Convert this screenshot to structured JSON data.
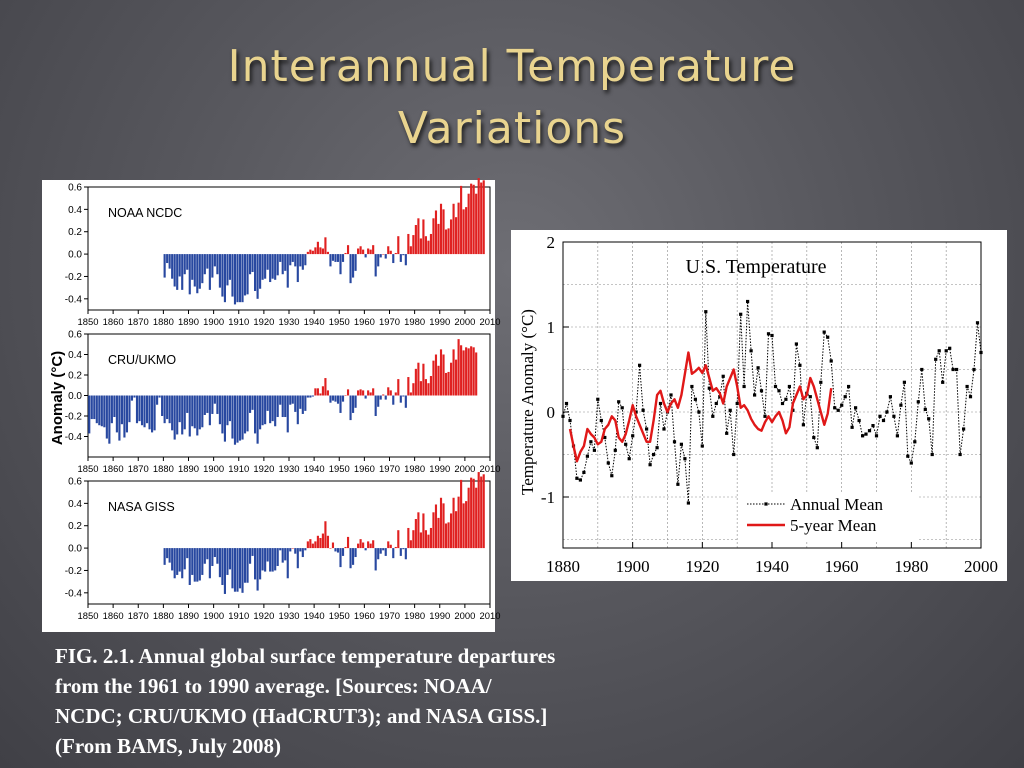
{
  "slide": {
    "title_line1": "Interannual Temperature",
    "title_line2": "Variations",
    "caption_lines": [
      "FIG. 2.1. Annual global surface temperature departures",
      "from the 1961 to 1990 average. [Sources: NOAA/",
      "NCDC; CRU/UKMO (HadCRUT3); and NASA GISS.]",
      "(From BAMS, July 2008)"
    ]
  },
  "colors": {
    "positive": "#e02020",
    "negative": "#2848a0",
    "five_year": "#e01818",
    "title": "#e9d48f"
  },
  "chart_data": [
    {
      "type": "bar",
      "panels": [
        {
          "name": "NOAA NCDC",
          "x_start": 1880,
          "values": [
            -0.21,
            -0.08,
            -0.13,
            -0.22,
            -0.29,
            -0.32,
            -0.2,
            -0.32,
            -0.18,
            -0.14,
            -0.36,
            -0.23,
            -0.29,
            -0.35,
            -0.31,
            -0.26,
            -0.18,
            -0.13,
            -0.32,
            -0.21,
            -0.11,
            -0.18,
            -0.3,
            -0.38,
            -0.43,
            -0.28,
            -0.23,
            -0.38,
            -0.45,
            -0.43,
            -0.43,
            -0.43,
            -0.37,
            -0.36,
            -0.18,
            -0.16,
            -0.33,
            -0.4,
            -0.31,
            -0.23,
            -0.22,
            -0.14,
            -0.25,
            -0.22,
            -0.23,
            -0.19,
            -0.07,
            -0.18,
            -0.15,
            -0.3,
            -0.1,
            -0.07,
            -0.11,
            -0.25,
            -0.11,
            -0.14,
            -0.1,
            0.02,
            0.04,
            0.03,
            0.06,
            0.11,
            0.06,
            0.05,
            0.15,
            0.02,
            -0.11,
            -0.06,
            -0.07,
            -0.07,
            -0.18,
            -0.07,
            0.01,
            0.08,
            -0.26,
            -0.21,
            -0.15,
            0.05,
            0.07,
            0.04,
            -0.03,
            0.05,
            0.04,
            0.08,
            -0.2,
            -0.11,
            -0.03,
            0.0,
            -0.04,
            0.07,
            0.03,
            -0.08,
            0.01,
            0.16,
            -0.07,
            -0.01,
            -0.1,
            0.18,
            0.07,
            0.17,
            0.26,
            0.32,
            0.14,
            0.31,
            0.16,
            0.12,
            0.18,
            0.32,
            0.39,
            0.27,
            0.45,
            0.4,
            0.22,
            0.23,
            0.31,
            0.45,
            0.33,
            0.46,
            0.61,
            0.4,
            0.42,
            0.54,
            0.63,
            0.62,
            0.54,
            0.68,
            0.64,
            0.66
          ],
          "ylim": [
            -0.5,
            0.6
          ],
          "yticks": [
            "0.6",
            "0.4",
            "0.2",
            "0.0",
            "-0.2",
            "-0.4"
          ]
        },
        {
          "name": "CRU/UKMO",
          "x_start": 1850,
          "values": [
            -0.37,
            -0.23,
            -0.23,
            -0.27,
            -0.29,
            -0.3,
            -0.31,
            -0.42,
            -0.47,
            -0.27,
            -0.21,
            -0.36,
            -0.44,
            -0.28,
            -0.41,
            -0.36,
            -0.26,
            -0.05,
            -0.02,
            -0.27,
            -0.25,
            -0.29,
            -0.31,
            -0.27,
            -0.33,
            -0.36,
            -0.34,
            -0.09,
            -0.02,
            -0.2,
            -0.27,
            -0.23,
            -0.27,
            -0.34,
            -0.43,
            -0.38,
            -0.26,
            -0.38,
            -0.33,
            -0.17,
            -0.4,
            -0.3,
            -0.32,
            -0.39,
            -0.33,
            -0.31,
            -0.19,
            -0.17,
            -0.29,
            -0.18,
            -0.08,
            -0.18,
            -0.28,
            -0.37,
            -0.45,
            -0.29,
            -0.25,
            -0.42,
            -0.48,
            -0.46,
            -0.44,
            -0.43,
            -0.37,
            -0.35,
            -0.17,
            -0.14,
            -0.37,
            -0.47,
            -0.33,
            -0.29,
            -0.28,
            -0.15,
            -0.27,
            -0.25,
            -0.3,
            -0.21,
            -0.09,
            -0.21,
            -0.21,
            -0.36,
            -0.09,
            -0.08,
            -0.16,
            -0.28,
            -0.13,
            -0.18,
            -0.15,
            -0.02,
            -0.02,
            -0.01,
            0.07,
            0.07,
            0.02,
            0.09,
            0.17,
            0.05,
            -0.07,
            -0.05,
            -0.06,
            -0.08,
            -0.17,
            -0.06,
            0.0,
            0.06,
            -0.24,
            -0.17,
            -0.12,
            0.05,
            0.06,
            0.05,
            -0.03,
            0.05,
            0.03,
            0.07,
            -0.2,
            -0.11,
            -0.04,
            0.01,
            -0.04,
            0.08,
            0.05,
            -0.09,
            0.03,
            0.16,
            -0.07,
            -0.01,
            -0.12,
            0.18,
            0.03,
            0.12,
            0.26,
            0.32,
            0.14,
            0.31,
            0.16,
            0.12,
            0.19,
            0.34,
            0.4,
            0.29,
            0.45,
            0.4,
            0.22,
            0.23,
            0.32,
            0.45,
            0.35,
            0.55,
            0.49,
            0.44,
            0.47,
            0.46,
            0.48,
            0.47,
            0.42
          ],
          "ylim": [
            -0.6,
            0.6
          ],
          "yticks": [
            "0.6",
            "0.4",
            "0.2",
            "0.0",
            "-0.2",
            "-0.4"
          ]
        },
        {
          "name": "NASA GISS",
          "x_start": 1880,
          "values": [
            -0.15,
            -0.09,
            -0.13,
            -0.2,
            -0.27,
            -0.24,
            -0.21,
            -0.27,
            -0.19,
            -0.09,
            -0.33,
            -0.24,
            -0.3,
            -0.3,
            -0.29,
            -0.24,
            -0.14,
            -0.1,
            -0.27,
            -0.16,
            -0.08,
            -0.14,
            -0.26,
            -0.33,
            -0.41,
            -0.24,
            -0.19,
            -0.36,
            -0.39,
            -0.39,
            -0.36,
            -0.4,
            -0.31,
            -0.31,
            -0.14,
            -0.07,
            -0.28,
            -0.38,
            -0.28,
            -0.2,
            -0.21,
            -0.12,
            -0.21,
            -0.21,
            -0.2,
            -0.16,
            -0.02,
            -0.13,
            -0.11,
            -0.27,
            -0.03,
            0.0,
            -0.05,
            -0.18,
            -0.03,
            -0.08,
            -0.02,
            0.06,
            0.08,
            0.04,
            0.06,
            0.11,
            0.09,
            0.13,
            0.24,
            0.11,
            0.0,
            0.05,
            -0.03,
            -0.04,
            -0.17,
            -0.07,
            0.01,
            0.1,
            -0.18,
            -0.15,
            -0.08,
            0.04,
            0.08,
            0.05,
            -0.02,
            0.06,
            0.04,
            0.07,
            -0.2,
            -0.1,
            -0.05,
            -0.02,
            -0.07,
            0.06,
            0.03,
            -0.09,
            0.01,
            0.16,
            -0.07,
            -0.01,
            -0.1,
            0.18,
            0.07,
            0.16,
            0.26,
            0.32,
            0.14,
            0.31,
            0.16,
            0.12,
            0.18,
            0.32,
            0.39,
            0.27,
            0.45,
            0.4,
            0.22,
            0.23,
            0.31,
            0.45,
            0.33,
            0.46,
            0.61,
            0.4,
            0.42,
            0.54,
            0.63,
            0.62,
            0.54,
            0.68,
            0.64,
            0.66
          ],
          "ylim": [
            -0.5,
            0.6
          ],
          "yticks": [
            "0.6",
            "0.4",
            "0.2",
            "0.0",
            "-0.2",
            "-0.4"
          ]
        }
      ],
      "xlim": [
        1850,
        2010
      ],
      "xticks": [
        "1850",
        "1860",
        "1870",
        "1880",
        "1890",
        "1900",
        "1910",
        "1920",
        "1930",
        "1940",
        "1950",
        "1960",
        "1970",
        "1980",
        "1990",
        "2000",
        "2010"
      ],
      "ylabel": "Anomaly (°C)"
    },
    {
      "type": "line",
      "title": "U.S. Temperature",
      "ylabel": "Temperature Anomaly (°C)",
      "xlabel": "",
      "xlim": [
        1880,
        2000
      ],
      "ylim": [
        -1.6,
        2
      ],
      "xticks": [
        "1880",
        "1900",
        "1920",
        "1940",
        "1960",
        "1980",
        "2000"
      ],
      "yticks": [
        "2",
        "1",
        "0",
        "-1"
      ],
      "grid": true,
      "legend_position": "bottom-right",
      "series": [
        {
          "name": "Annual Mean",
          "x_start": 1880,
          "values": [
            -0.05,
            0.1,
            -0.1,
            -0.4,
            -0.78,
            -0.8,
            -0.71,
            -0.52,
            -0.35,
            -0.45,
            0.15,
            -0.1,
            -0.3,
            -0.6,
            -0.75,
            -0.45,
            0.12,
            0.05,
            -0.38,
            -0.55,
            -0.28,
            0.0,
            0.55,
            0.02,
            -0.2,
            -0.62,
            -0.5,
            -0.42,
            0.1,
            -0.2,
            0.0,
            0.2,
            -0.35,
            -0.85,
            -0.38,
            -0.55,
            -1.07,
            0.3,
            0.15,
            0.0,
            -0.4,
            1.18,
            0.28,
            -0.05,
            0.1,
            0.18,
            0.42,
            -0.25,
            0.02,
            -0.5,
            0.1,
            1.15,
            0.3,
            1.3,
            0.72,
            0.2,
            0.52,
            0.25,
            -0.05,
            0.92,
            0.9,
            0.3,
            0.25,
            0.1,
            0.15,
            0.3,
            0.02,
            0.8,
            0.55,
            -0.15,
            0.22,
            0.18,
            -0.3,
            -0.42,
            0.35,
            0.94,
            0.88,
            0.6,
            0.05,
            0.02,
            0.08,
            0.18,
            0.3,
            -0.18,
            0.05,
            -0.1,
            -0.28,
            -0.26,
            -0.22,
            -0.16,
            -0.28,
            -0.05,
            -0.1,
            0.0,
            0.18,
            -0.05,
            -0.28,
            0.08,
            0.35,
            -0.52,
            -0.6,
            -0.35,
            0.12,
            0.5,
            0.03,
            -0.08,
            -0.5,
            0.62,
            0.72,
            0.35,
            0.72,
            0.75,
            0.5,
            0.5,
            -0.5,
            -0.2,
            0.3,
            0.18,
            0.5,
            1.05,
            0.7
          ]
        },
        {
          "name": "5-year Mean",
          "x_start": 1882,
          "values": [
            -0.2,
            -0.4,
            -0.58,
            -0.47,
            -0.4,
            -0.2,
            -0.26,
            -0.3,
            -0.38,
            -0.35,
            -0.2,
            -0.15,
            -0.05,
            -0.1,
            -0.3,
            -0.35,
            -0.26,
            -0.1,
            0.08,
            -0.05,
            -0.15,
            -0.25,
            -0.35,
            -0.35,
            -0.1,
            0.2,
            0.25,
            0.1,
            0.0,
            0.1,
            0.15,
            0.05,
            0.2,
            0.45,
            0.7,
            0.45,
            0.48,
            0.52,
            0.46,
            0.55,
            0.4,
            0.25,
            0.28,
            0.22,
            0.1,
            0.3,
            0.4,
            0.5,
            0.3,
            0.05,
            0.08,
            0.02,
            -0.08,
            -0.15,
            -0.2,
            -0.22,
            -0.12,
            -0.05,
            -0.12,
            -0.05,
            0.0,
            -0.1,
            -0.25,
            -0.18,
            0.1,
            0.2,
            0.3,
            0.15,
            0.2,
            0.4,
            0.3,
            0.15,
            0.0,
            -0.15,
            -0.02,
            0.28
          ]
        }
      ]
    }
  ]
}
